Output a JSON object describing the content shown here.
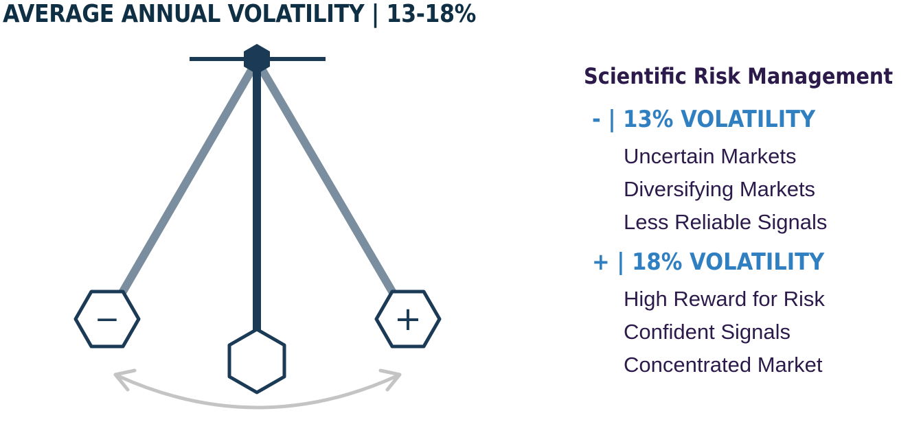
{
  "title": "AVERAGE ANNUAL VOLATILITY | 13-18%",
  "pendulum": {
    "minus_symbol": "−",
    "plus_symbol": "+"
  },
  "panel": {
    "heading": "Scientific Risk Management",
    "low": {
      "heading": "- | 13% VOLATILITY",
      "items": [
        "Uncertain Markets",
        "Diversifying Markets",
        "Less Reliable Signals"
      ]
    },
    "high": {
      "heading": "+ | 18% VOLATILITY",
      "items": [
        "High Reward for Risk",
        "Confident Signals",
        "Concentrated Market"
      ]
    }
  },
  "colors": {
    "dark_navy": "#1a3a55",
    "arm_gray": "#7a8ea0",
    "arrow_gray": "#c4c4c4",
    "accent_blue": "#2f7fc1",
    "text_purple": "#2b1a4a"
  }
}
